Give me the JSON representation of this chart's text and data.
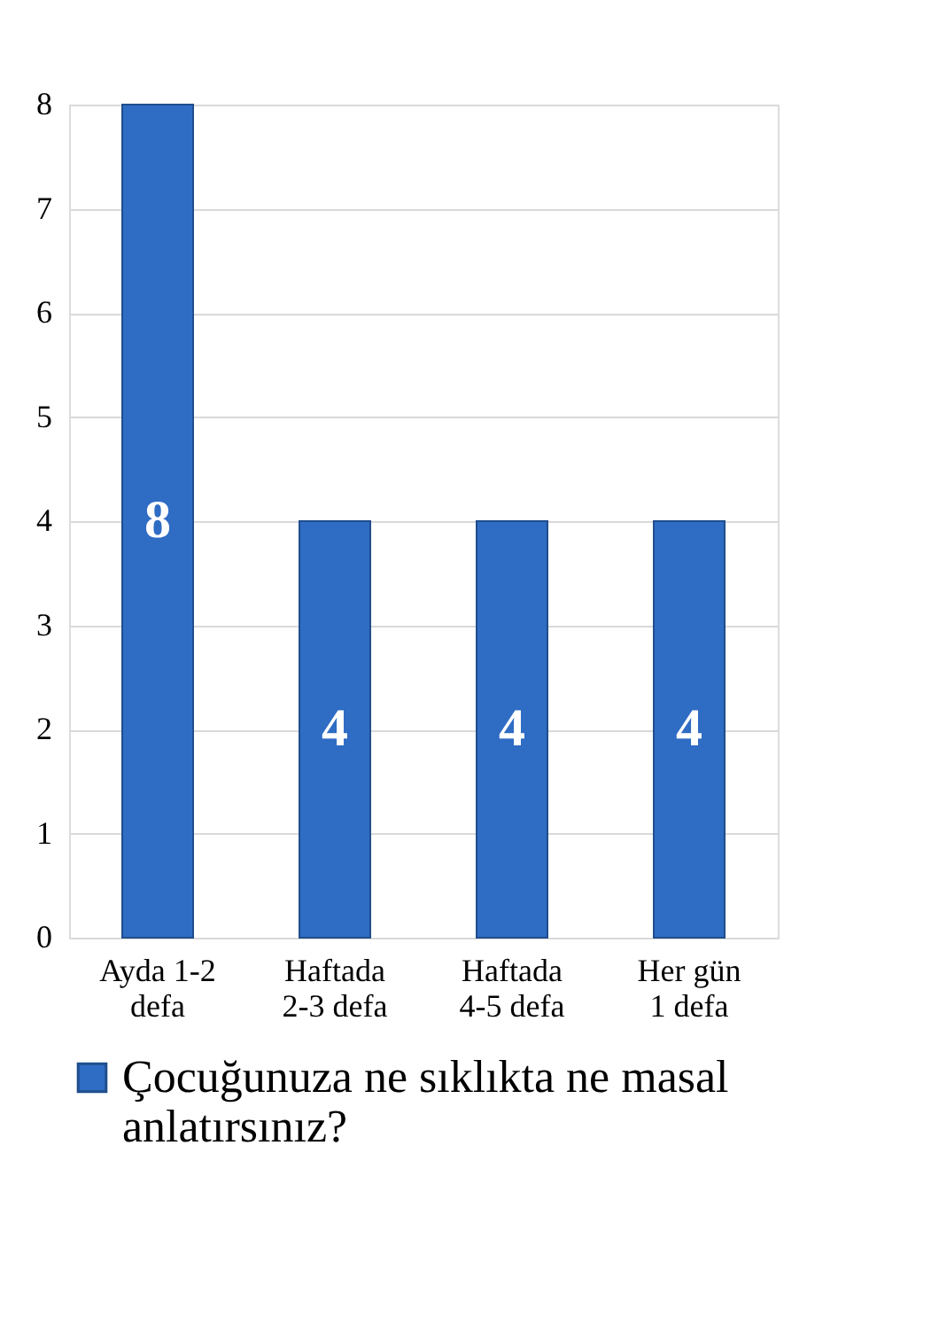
{
  "chart_data": {
    "type": "bar",
    "categories": [
      "Ayda 1-2\ndefa",
      "Haftada\n2-3 defa",
      "Haftada\n4-5 defa",
      "Her gün\n1 defa"
    ],
    "series": [
      {
        "name": "Çocuğunuza ne sıklıkta ne masal\nanlatırsınız?",
        "color": "#2f6cc4",
        "values": [
          8,
          4,
          4,
          4
        ]
      }
    ],
    "ylim": [
      0,
      8
    ],
    "yticks": [
      0,
      1,
      2,
      3,
      4,
      5,
      6,
      7,
      8
    ],
    "grid": "y",
    "legend": "bottom",
    "data_labels": true
  }
}
